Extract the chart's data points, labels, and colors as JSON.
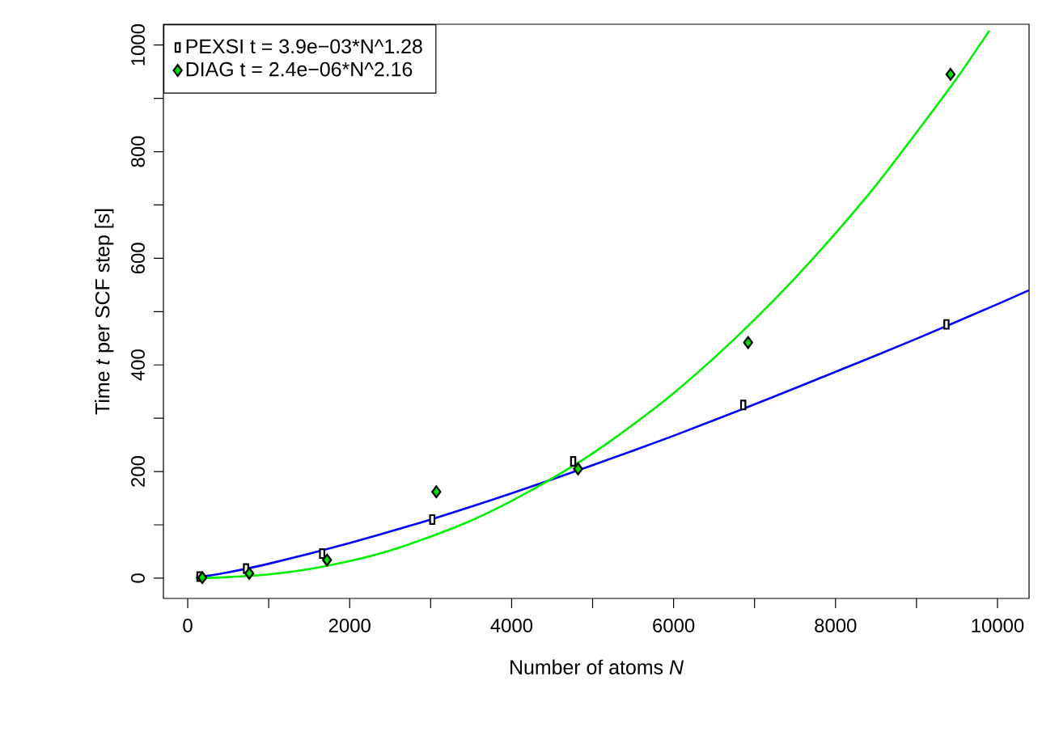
{
  "chart_data": {
    "type": "scatter",
    "xlabel": "Number of atoms *N*",
    "ylabel": "Time *t* per SCF step [s]",
    "xlim": [
      -300,
      10390
    ],
    "ylim": [
      -38,
      1039
    ],
    "xticks": [
      0,
      {
        "value": 1000,
        "label": null
      },
      2000,
      {
        "value": 3000,
        "label": null
      },
      4000,
      {
        "value": 5000,
        "label": null
      },
      6000,
      {
        "value": 7000,
        "label": null
      },
      8000,
      {
        "value": 9000,
        "label": null
      },
      10000
    ],
    "yticks": [
      0,
      {
        "value": 100,
        "label": null
      },
      200,
      {
        "value": 300,
        "label": null
      },
      400,
      {
        "value": 500,
        "label": null
      },
      600,
      {
        "value": 700,
        "label": null
      },
      800,
      {
        "value": 900,
        "label": null
      },
      1000
    ],
    "legend": "top left",
    "series": [
      {
        "type": "line",
        "color": "#0000ff",
        "line_style": "solid",
        "marker": "none",
        "x": [
          100,
          500,
          1000,
          2000,
          3000,
          4000,
          5000,
          6000,
          7000,
          8000,
          9000,
          10000,
          10390
        ],
        "values": [
          1,
          11,
          27,
          66,
          110,
          159,
          212,
          267,
          326,
          387,
          449,
          514,
          540
        ]
      },
      {
        "type": "line",
        "color": "#00ee00",
        "line_style": "solid",
        "marker": "none",
        "x": [
          100,
          500,
          1000,
          1500,
          2000,
          2500,
          3000,
          3500,
          4000,
          4500,
          5000,
          5500,
          6000,
          6500,
          7000,
          7500,
          8000,
          8500,
          9000,
          9500,
          9900
        ],
        "values": [
          0,
          2,
          7,
          17,
          32,
          52,
          78,
          108,
          145,
          187,
          234,
          288,
          347,
          413,
          485,
          563,
          647,
          737,
          836,
          938,
          1027
        ]
      },
      {
        "name": "PEXSI t = 3.9e−03*N^1.28",
        "color": "#ffffff",
        "marker": "square",
        "x": [
          145,
          720,
          1660,
          3020,
          4760,
          6860,
          9370
        ],
        "values": [
          3,
          18,
          46,
          110,
          219,
          325,
          476
        ]
      },
      {
        "name": "DIAG t = 2.4e−06*N^2.16",
        "color": "#00dd00",
        "marker": "diamond",
        "x": [
          180,
          760,
          1720,
          3070,
          4820,
          6920,
          9420
        ],
        "values": [
          1,
          9,
          34,
          162,
          205,
          442,
          945
        ]
      }
    ]
  }
}
